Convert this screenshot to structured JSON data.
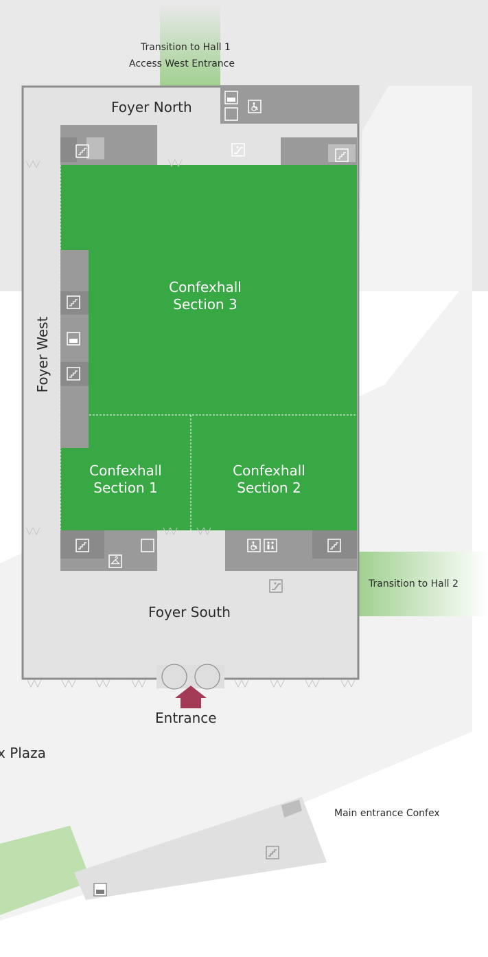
{
  "map": {
    "labels": {
      "transition_hall1_line1": "Transition to Hall 1",
      "transition_hall1_line2": "Access West Entrance",
      "foyer_north": "Foyer North",
      "foyer_west": "Foyer West",
      "foyer_south": "Foyer South",
      "entrance": "Entrance",
      "transition_hall2": "Transition to Hall 2",
      "plaza": "x Plaza",
      "main_entrance": "Main entrance Confex"
    },
    "halls": [
      {
        "line1": "Confexhall",
        "line2": "Section 3"
      },
      {
        "line1": "Confexhall",
        "line2": "Section 1"
      },
      {
        "line1": "Confexhall",
        "line2": "Section 2"
      }
    ],
    "colors": {
      "hall": "#37a843",
      "foyer": "#e3e3e3",
      "service": "#9a9a9a",
      "entrance_arrow": "#a33b57",
      "transition": "#9fd08f"
    },
    "icons": [
      "stairs-icon",
      "elevator-icon",
      "wheelchair-icon",
      "restroom-icon",
      "escalator-icon",
      "cloakroom-icon",
      "door-icon"
    ]
  }
}
